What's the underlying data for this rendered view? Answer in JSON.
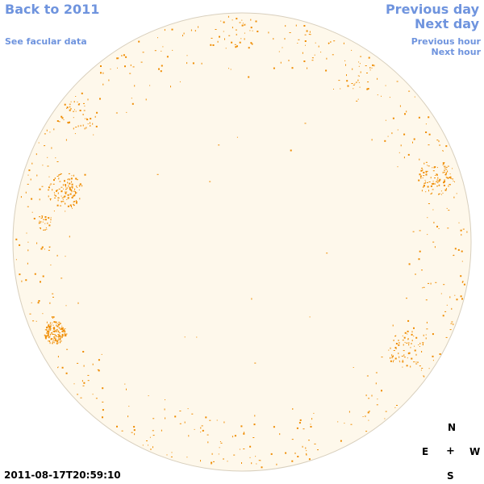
{
  "nav": {
    "back": "Back to 2011",
    "facular": "See facular data",
    "previous_day": "Previous day",
    "next_day": "Next day",
    "previous_hour": "Previous hour",
    "next_hour": "Next hour"
  },
  "timestamp": "2011-08-17T20:59:10",
  "compass": {
    "north": "N",
    "east": "E",
    "center": "+",
    "west": "W",
    "south": "S"
  },
  "colors": {
    "link": "#6f94de",
    "disk_fill": "#fef8eb",
    "disk_edge": "#d8cfbd",
    "facula": "#ef8c00"
  }
}
